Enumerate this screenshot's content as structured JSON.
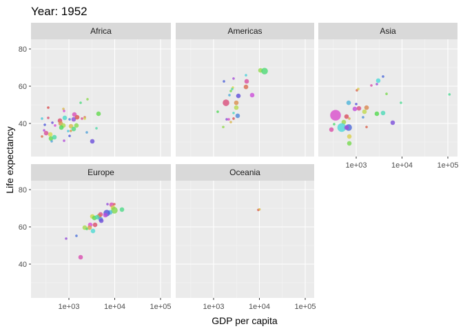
{
  "chart_data": {
    "type": "scatter",
    "title": "Year: 1952",
    "xlabel": "GDP per capita",
    "ylabel": "Life expectancy",
    "x_scale": "log10",
    "x_ticks": [
      "1e+03",
      "1e+04",
      "1e+05"
    ],
    "y_ticks": [
      "40",
      "60",
      "80"
    ],
    "ylim": [
      22,
      85
    ],
    "xlim": [
      150,
      170000
    ],
    "grid": true,
    "legend": "none",
    "point_fields": [
      "gdp_per_capita",
      "life_expectancy",
      "population_size_class"
    ],
    "facets": [
      {
        "name": "Africa",
        "points": [
          [
            354,
            48.5,
            1
          ],
          [
            759,
            47.8,
            1
          ],
          [
            2547,
            53.0,
            1
          ],
          [
            1803,
            51.1,
            1
          ],
          [
            259,
            42.6,
            1
          ],
          [
            298,
            39.3,
            1
          ],
          [
            288,
            36.3,
            1
          ],
          [
            319,
            34.8,
            2
          ],
          [
            259,
            33.0,
            1
          ],
          [
            393,
            34.1,
            2
          ],
          [
            406,
            31.9,
            2
          ],
          [
            483,
            32.6,
            2
          ],
          [
            421,
            30.4,
            1
          ],
          [
            436,
            40.4,
            1
          ],
          [
            500,
            38.9,
            1
          ],
          [
            638,
            41.5,
            2
          ],
          [
            661,
            40.0,
            2
          ],
          [
            759,
            38.9,
            2
          ],
          [
            684,
            37.8,
            2
          ],
          [
            813,
            43.0,
            2
          ],
          [
            1035,
            42.2,
            1
          ],
          [
            1274,
            42.2,
            2
          ],
          [
            1319,
            44.8,
            2
          ],
          [
            1514,
            43.3,
            2
          ],
          [
            1109,
            38.5,
            2
          ],
          [
            1462,
            38.9,
            2
          ],
          [
            1274,
            37.0,
            2
          ],
          [
            966,
            35.9,
            1
          ],
          [
            1035,
            33.3,
            1
          ],
          [
            785,
            30.7,
            1
          ],
          [
            1932,
            42.6,
            1
          ],
          [
            2218,
            43.3,
            1
          ],
          [
            2218,
            42.6,
            1
          ],
          [
            4433,
            45.2,
            2
          ],
          [
            3997,
            37.4,
            1
          ],
          [
            2460,
            35.2,
            1
          ],
          [
            3243,
            30.4,
            2
          ],
          [
            785,
            46.7,
            1
          ],
          [
            354,
            43.0,
            1
          ],
          [
            1100,
            36.0,
            1
          ]
        ]
      },
      {
        "name": "Americas",
        "points": [
          [
            10544,
            68.5,
            2
          ],
          [
            12970,
            68.1,
            3
          ],
          [
            5093,
            65.9,
            1
          ],
          [
            1683,
            62.6,
            1
          ],
          [
            2729,
            64.1,
            1
          ],
          [
            5272,
            62.6,
            2
          ],
          [
            5093,
            59.6,
            2
          ],
          [
            2636,
            59.3,
            1
          ],
          [
            2377,
            57.4,
            1
          ],
          [
            2547,
            58.5,
            1
          ],
          [
            2218,
            55.2,
            1
          ],
          [
            3475,
            54.8,
            2
          ],
          [
            6950,
            55.2,
            2
          ],
          [
            1866,
            51.1,
            3
          ],
          [
            3133,
            51.1,
            2
          ],
          [
            3133,
            48.5,
            2
          ],
          [
            1231,
            46.3,
            1
          ],
          [
            2729,
            45.6,
            1
          ],
          [
            3357,
            44.1,
            2
          ],
          [
            1932,
            42.2,
            1
          ],
          [
            2143,
            42.2,
            1
          ],
          [
            2729,
            42.6,
            1
          ],
          [
            2377,
            40.7,
            1
          ],
          [
            1626,
            38.1,
            1
          ]
        ]
      },
      {
        "name": "Asia",
        "points": [
          [
            3027,
            63.0,
            2
          ],
          [
            3855,
            65.2,
            1
          ],
          [
            2825,
            61.1,
            1
          ],
          [
            2143,
            60.4,
            1
          ],
          [
            1035,
            57.8,
            1
          ],
          [
            1109,
            58.5,
            1
          ],
          [
            4592,
            55.9,
            1
          ],
          [
            9484,
            51.1,
            1
          ],
          [
            684,
            51.1,
            2
          ],
          [
            1000,
            50.4,
            1
          ],
          [
            933,
            47.8,
            2
          ],
          [
            1148,
            48.1,
            2
          ],
          [
            1683,
            48.5,
            2
          ],
          [
            1514,
            46.3,
            2
          ],
          [
            2825,
            45.2,
            2
          ],
          [
            3855,
            45.6,
            2
          ],
          [
            1413,
            43.3,
            1
          ],
          [
            6266,
            40.4,
            2
          ],
          [
            354,
            44.4,
            5
          ],
          [
            615,
            43.7,
            2
          ],
          [
            708,
            42.6,
            1
          ],
          [
            536,
            40.7,
            2
          ],
          [
            330,
            39.6,
            1
          ],
          [
            483,
            37.8,
            4
          ],
          [
            684,
            37.8,
            3
          ],
          [
            615,
            37.8,
            2
          ],
          [
            288,
            36.7,
            2
          ],
          [
            1683,
            38.1,
            1
          ],
          [
            708,
            33.0,
            2
          ],
          [
            708,
            29.3,
            2
          ],
          [
            108382,
            55.6,
            1
          ]
        ]
      },
      {
        "name": "Europe",
        "points": [
          [
            6950,
            72.2,
            1
          ],
          [
            8551,
            71.9,
            2
          ],
          [
            9817,
            72.2,
            1
          ],
          [
            9160,
            70.4,
            2
          ],
          [
            9817,
            68.9,
            3
          ],
          [
            14390,
            69.3,
            2
          ],
          [
            7980,
            67.8,
            2
          ],
          [
            6714,
            67.4,
            3
          ],
          [
            6266,
            66.3,
            2
          ],
          [
            4917,
            66.7,
            2
          ],
          [
            4592,
            65.9,
            2
          ],
          [
            3243,
            65.6,
            2
          ],
          [
            3597,
            64.8,
            2
          ],
          [
            4140,
            65.2,
            2
          ],
          [
            4917,
            64.1,
            2
          ],
          [
            5093,
            63.3,
            2
          ],
          [
            2924,
            61.1,
            2
          ],
          [
            3724,
            61.1,
            2
          ],
          [
            2825,
            59.6,
            2
          ],
          [
            2218,
            59.6,
            2
          ],
          [
            2460,
            58.9,
            1
          ],
          [
            3357,
            57.8,
            2
          ],
          [
            1462,
            55.2,
            1
          ],
          [
            871,
            53.7,
            1
          ],
          [
            1803,
            43.7,
            2
          ]
        ]
      },
      {
        "name": "Oceania",
        "points": [
          [
            9500,
            69.1,
            1
          ],
          [
            10040,
            69.4,
            1
          ]
        ]
      }
    ]
  }
}
